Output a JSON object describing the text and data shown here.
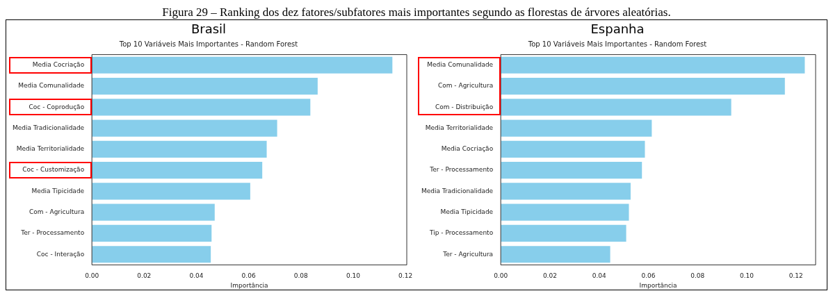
{
  "chart_data": [
    {
      "type": "bar",
      "orientation": "horizontal",
      "title": "Brasil",
      "subtitle": "Top 10 Variáveis Mais Importantes - Random Forest",
      "xlabel": "Importância",
      "annotations": [
        "Figura 29 – Ranking dos dez fatores/subfatores mais importantes segundo as florestas de árvores aleatórias."
      ],
      "categories": [
        "Media Cocriação",
        "Media Comunalidade",
        "Coc - Coprodução",
        "Media Tradicionalidade",
        "Media Territorialidade",
        "Coc - Customização",
        "Media Tipicidade",
        "Com - Agricultura",
        "Ter - Processamento",
        "Coc - Interação"
      ],
      "values": [
        0.115,
        0.0864,
        0.0836,
        0.0709,
        0.0669,
        0.0652,
        0.0606,
        0.047,
        0.0458,
        0.0455
      ],
      "color": "#87ceeb",
      "xlim": [
        0,
        0.1205
      ],
      "xticks": [
        {
          "value": 0,
          "label": "0.00"
        },
        {
          "value": 0.02,
          "label": "0.02"
        },
        {
          "value": 0.04,
          "label": "0.04"
        },
        {
          "value": 0.06,
          "label": "0.06"
        },
        {
          "value": 0.08,
          "label": "0.08"
        },
        {
          "value": 0.1,
          "label": "0.10"
        },
        {
          "value": 0.12,
          "label": "0.12"
        }
      ],
      "grid": false,
      "legend": false
    },
    {
      "type": "bar",
      "orientation": "horizontal",
      "title": "Espanha",
      "subtitle": "Top 10 Variáveis Mais Importantes - Random Forest",
      "xlabel": "Importância",
      "categories": [
        "Media Comunalidade",
        "Com - Agricultura",
        "Com - Distribuição",
        "Media Territorialidade",
        "Media Cocriação",
        "Ter - Processamento",
        "Media Tradicionalidade",
        "Media Tipicidade",
        "Tip - Processamento",
        "Ter - Agricultura"
      ],
      "values": [
        0.1236,
        0.1155,
        0.0937,
        0.0614,
        0.0586,
        0.0574,
        0.0528,
        0.0521,
        0.051,
        0.0445
      ],
      "color": "#87ceeb",
      "xlim": [
        0,
        0.128
      ],
      "xticks": [
        {
          "value": 0,
          "label": "0.00"
        },
        {
          "value": 0.02,
          "label": "0.02"
        },
        {
          "value": 0.04,
          "label": "0.04"
        },
        {
          "value": 0.06,
          "label": "0.06"
        },
        {
          "value": 0.08,
          "label": "0.08"
        },
        {
          "value": 0.1,
          "label": "0.10"
        },
        {
          "value": 0.12,
          "label": "0.12"
        }
      ],
      "grid": false,
      "legend": false
    }
  ]
}
